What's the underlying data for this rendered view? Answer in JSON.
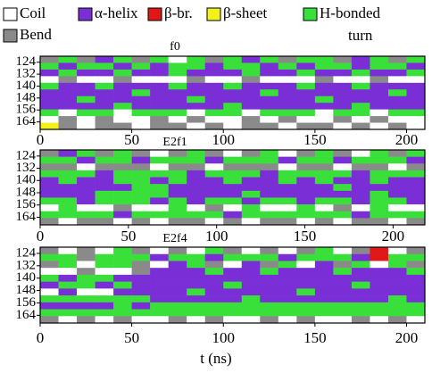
{
  "chart_data": {
    "type": "heatmap",
    "legend": [
      {
        "name": "Coil",
        "color": "#ffffff"
      },
      {
        "name": "α-helix",
        "color": "#7a2ed6"
      },
      {
        "name": "β-br.",
        "color": "#e01818"
      },
      {
        "name": "β-sheet",
        "color": "#f2f21a"
      },
      {
        "name": "H-bonded turn",
        "color": "#3ae03a"
      },
      {
        "name": "Bend",
        "color": "#8a8a8a"
      }
    ],
    "xlabel": "t (ns)",
    "panels": [
      {
        "title": "f0",
        "xlim": [
          0,
          210
        ],
        "xticks": [
          0,
          50,
          100,
          150,
          200
        ],
        "ylim": [
          120,
          169
        ],
        "yticks": [
          124,
          132,
          140,
          148,
          156,
          164
        ],
        "rows": [
          [
            5,
            4,
            5,
            1,
            4,
            5,
            4,
            0,
            4,
            5,
            4,
            1,
            4,
            5,
            4,
            4,
            5,
            1,
            4,
            5,
            4
          ],
          [
            4,
            1,
            4,
            4,
            1,
            4,
            1,
            4,
            4,
            1,
            4,
            4,
            1,
            4,
            1,
            4,
            4,
            1,
            4,
            4,
            1
          ],
          [
            1,
            4,
            1,
            1,
            4,
            1,
            1,
            4,
            1,
            1,
            1,
            4,
            1,
            1,
            4,
            1,
            1,
            4,
            1,
            1,
            4
          ],
          [
            0,
            5,
            0,
            0,
            5,
            0,
            0,
            0,
            5,
            0,
            0,
            5,
            0,
            0,
            0,
            5,
            0,
            0,
            5,
            0,
            0
          ],
          [
            4,
            1,
            1,
            4,
            1,
            1,
            1,
            4,
            1,
            1,
            4,
            1,
            1,
            1,
            4,
            1,
            1,
            4,
            1,
            1,
            1
          ],
          [
            1,
            1,
            1,
            1,
            1,
            4,
            1,
            1,
            1,
            1,
            1,
            1,
            4,
            1,
            1,
            1,
            1,
            1,
            1,
            4,
            1
          ],
          [
            1,
            1,
            4,
            1,
            1,
            1,
            1,
            1,
            4,
            1,
            1,
            1,
            1,
            1,
            1,
            4,
            1,
            1,
            1,
            1,
            1
          ],
          [
            1,
            1,
            1,
            1,
            4,
            1,
            1,
            1,
            1,
            1,
            4,
            1,
            1,
            1,
            1,
            1,
            1,
            4,
            1,
            1,
            1
          ],
          [
            4,
            0,
            4,
            4,
            0,
            4,
            4,
            4,
            0,
            4,
            4,
            0,
            4,
            4,
            4,
            0,
            4,
            4,
            0,
            4,
            4
          ],
          [
            0,
            5,
            0,
            5,
            0,
            0,
            5,
            0,
            5,
            0,
            0,
            5,
            0,
            5,
            0,
            0,
            5,
            0,
            5,
            0,
            0
          ],
          [
            3,
            5,
            0,
            5,
            5,
            0,
            5,
            5,
            0,
            5,
            0,
            5,
            5,
            0,
            5,
            5,
            0,
            5,
            0,
            5,
            0
          ]
        ]
      },
      {
        "title": "E2f1",
        "xlim": [
          0,
          218
        ],
        "xticks": [
          0,
          50,
          100,
          150,
          200
        ],
        "ylim": [
          120,
          169
        ],
        "yticks": [
          124,
          132,
          140,
          148,
          156,
          164
        ],
        "rows": [
          [
            5,
            1,
            4,
            5,
            4,
            5,
            0,
            5,
            4,
            5,
            0,
            5,
            4,
            0,
            5,
            4,
            5,
            0,
            4,
            5,
            4
          ],
          [
            4,
            4,
            1,
            4,
            4,
            1,
            4,
            4,
            4,
            1,
            4,
            4,
            4,
            1,
            4,
            4,
            1,
            4,
            4,
            4,
            1
          ],
          [
            5,
            5,
            0,
            5,
            5,
            5,
            0,
            5,
            5,
            0,
            5,
            5,
            5,
            0,
            5,
            5,
            0,
            5,
            5,
            0,
            5
          ],
          [
            4,
            4,
            4,
            1,
            4,
            4,
            4,
            4,
            1,
            4,
            4,
            4,
            1,
            4,
            4,
            4,
            4,
            1,
            4,
            4,
            4
          ],
          [
            1,
            4,
            1,
            1,
            4,
            4,
            1,
            4,
            1,
            1,
            4,
            1,
            1,
            4,
            1,
            4,
            1,
            1,
            4,
            1,
            1
          ],
          [
            1,
            1,
            1,
            1,
            1,
            4,
            4,
            1,
            1,
            1,
            1,
            1,
            1,
            1,
            1,
            1,
            4,
            1,
            1,
            1,
            1
          ],
          [
            1,
            1,
            1,
            4,
            4,
            4,
            4,
            1,
            1,
            1,
            1,
            4,
            1,
            1,
            1,
            1,
            1,
            1,
            4,
            1,
            1
          ],
          [
            4,
            4,
            1,
            4,
            4,
            4,
            1,
            4,
            1,
            4,
            4,
            1,
            4,
            4,
            1,
            4,
            4,
            1,
            4,
            4,
            1
          ],
          [
            0,
            4,
            0,
            0,
            5,
            0,
            0,
            4,
            0,
            5,
            0,
            4,
            0,
            0,
            4,
            0,
            5,
            0,
            4,
            0,
            0
          ],
          [
            4,
            4,
            4,
            4,
            1,
            4,
            4,
            4,
            4,
            4,
            1,
            4,
            4,
            4,
            4,
            4,
            4,
            1,
            4,
            4,
            4
          ],
          [
            5,
            0,
            5,
            5,
            0,
            5,
            0,
            5,
            5,
            0,
            5,
            0,
            5,
            5,
            0,
            5,
            0,
            5,
            5,
            0,
            5
          ]
        ]
      },
      {
        "title": "E2f4",
        "xlim": [
          0,
          210
        ],
        "xticks": [
          0,
          50,
          100,
          150,
          200
        ],
        "ylim": [
          120,
          169
        ],
        "yticks": [
          124,
          132,
          140,
          148,
          156,
          164
        ],
        "rows": [
          [
            5,
            0,
            5,
            0,
            4,
            5,
            0,
            5,
            0,
            4,
            5,
            0,
            5,
            0,
            5,
            4,
            0,
            5,
            2,
            0,
            5
          ],
          [
            4,
            4,
            5,
            4,
            4,
            4,
            1,
            4,
            4,
            1,
            4,
            4,
            4,
            1,
            4,
            4,
            4,
            1,
            2,
            4,
            4
          ],
          [
            5,
            4,
            0,
            4,
            4,
            5,
            0,
            1,
            4,
            5,
            0,
            1,
            5,
            4,
            0,
            1,
            5,
            4,
            0,
            4,
            5
          ],
          [
            0,
            0,
            5,
            0,
            0,
            5,
            1,
            1,
            1,
            4,
            1,
            1,
            4,
            1,
            1,
            1,
            4,
            1,
            1,
            1,
            4
          ],
          [
            4,
            1,
            4,
            4,
            1,
            1,
            1,
            1,
            1,
            1,
            1,
            1,
            1,
            1,
            1,
            1,
            1,
            1,
            1,
            1,
            1
          ],
          [
            1,
            4,
            4,
            1,
            4,
            1,
            1,
            1,
            1,
            1,
            4,
            1,
            1,
            1,
            1,
            1,
            1,
            4,
            1,
            1,
            1
          ],
          [
            0,
            1,
            0,
            0,
            1,
            1,
            1,
            1,
            4,
            1,
            1,
            1,
            1,
            1,
            4,
            1,
            1,
            1,
            1,
            1,
            1
          ],
          [
            4,
            4,
            4,
            4,
            4,
            4,
            1,
            1,
            1,
            1,
            1,
            4,
            1,
            1,
            1,
            1,
            1,
            1,
            1,
            4,
            1
          ],
          [
            1,
            1,
            1,
            1,
            4,
            1,
            4,
            4,
            4,
            4,
            4,
            4,
            4,
            4,
            4,
            4,
            4,
            4,
            4,
            4,
            4
          ],
          [
            4,
            4,
            4,
            4,
            4,
            4,
            4,
            4,
            4,
            4,
            4,
            4,
            4,
            4,
            4,
            4,
            4,
            4,
            4,
            4,
            4
          ],
          [
            5,
            0,
            5,
            0,
            5,
            0,
            0,
            5,
            0,
            5,
            0,
            0,
            5,
            0,
            5,
            0,
            0,
            5,
            0,
            5,
            0
          ]
        ]
      }
    ]
  }
}
